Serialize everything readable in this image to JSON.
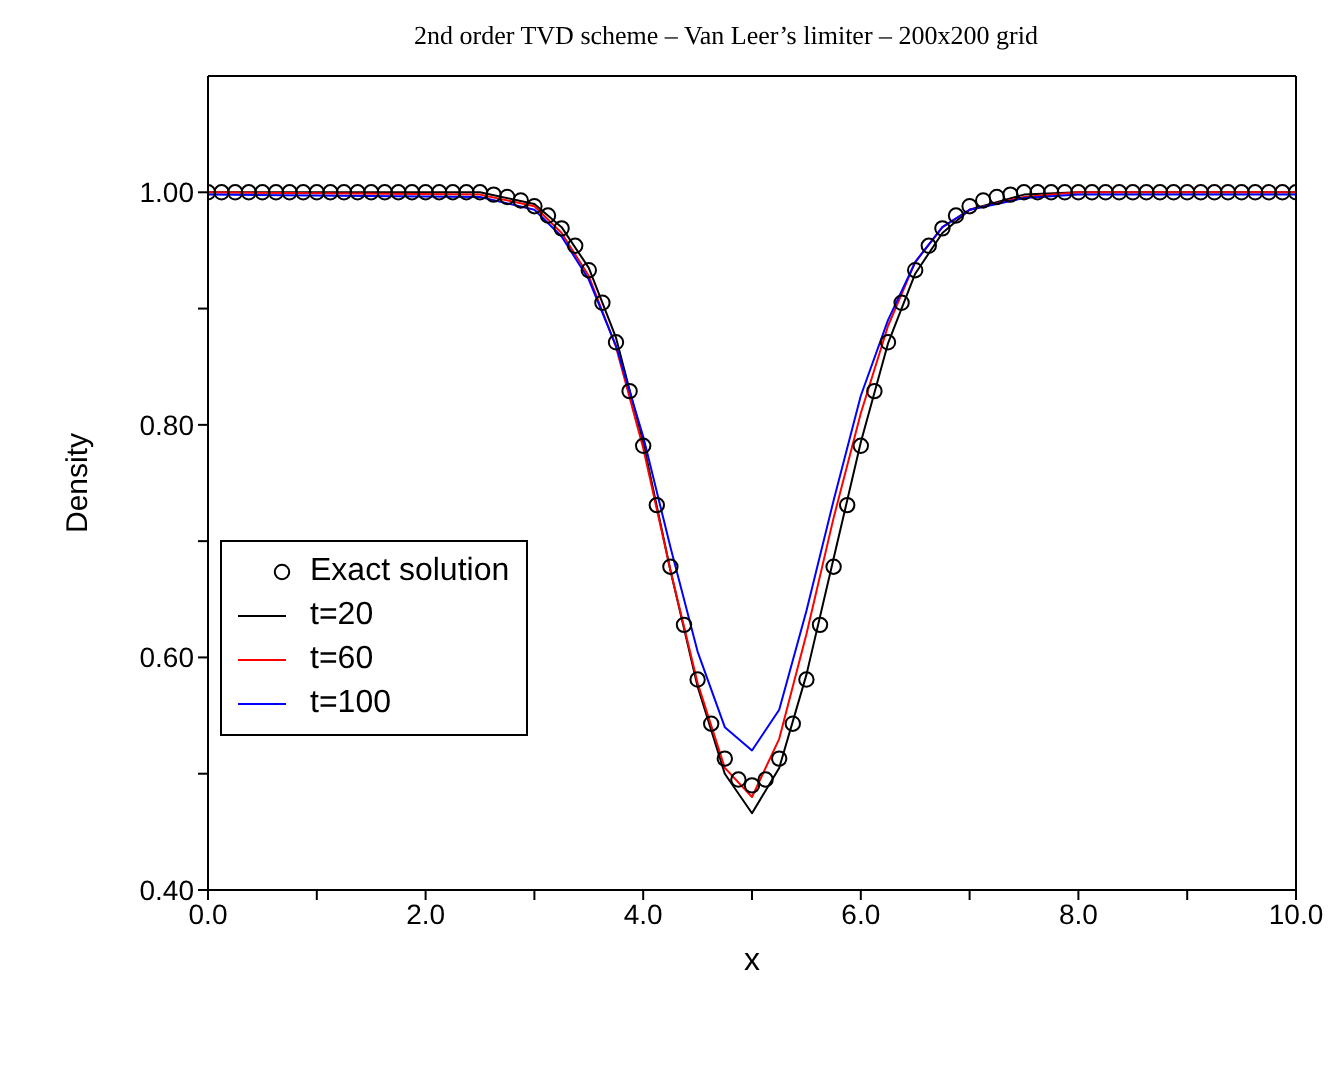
{
  "chart_data": {
    "type": "line",
    "title": "2nd order TVD scheme – Van Leer’s limiter – 200x200 grid",
    "xlabel": "x",
    "ylabel": "Density",
    "xlim": [
      0,
      10
    ],
    "ylim": [
      0.4,
      1.1
    ],
    "xticks": [
      {
        "value": 0,
        "label": "0.0"
      },
      {
        "value": 1,
        "label": null
      },
      {
        "value": 2,
        "label": "2.0"
      },
      {
        "value": 3,
        "label": null
      },
      {
        "value": 4,
        "label": "4.0"
      },
      {
        "value": 5,
        "label": null
      },
      {
        "value": 6,
        "label": "6.0"
      },
      {
        "value": 7,
        "label": null
      },
      {
        "value": 8,
        "label": "8.0"
      },
      {
        "value": 9,
        "label": null
      },
      {
        "value": 10,
        "label": "10.0"
      }
    ],
    "yticks": [
      {
        "value": 0.4,
        "label": "0.40"
      },
      {
        "value": 0.5,
        "label": null
      },
      {
        "value": 0.6,
        "label": "0.60"
      },
      {
        "value": 0.7,
        "label": null
      },
      {
        "value": 0.8,
        "label": "0.80"
      },
      {
        "value": 0.9,
        "label": null
      },
      {
        "value": 1.0,
        "label": "1.00"
      }
    ],
    "grid": false,
    "legend": "left",
    "series": [
      {
        "name": "Exact solution",
        "type": "scatter",
        "marker": "circle",
        "color": "#000000",
        "x": [
          0,
          0.125,
          0.25,
          0.375,
          0.5,
          0.625,
          0.75,
          0.875,
          1,
          1.125,
          1.25,
          1.375,
          1.5,
          1.625,
          1.75,
          1.875,
          2,
          2.125,
          2.25,
          2.375,
          2.5,
          2.625,
          2.75,
          2.875,
          3,
          3.125,
          3.25,
          3.375,
          3.5,
          3.625,
          3.75,
          3.875,
          4,
          4.125,
          4.25,
          4.375,
          4.5,
          4.625,
          4.75,
          4.875,
          5,
          5.125,
          5.25,
          5.375,
          5.5,
          5.625,
          5.75,
          5.875,
          6,
          6.125,
          6.25,
          6.375,
          6.5,
          6.625,
          6.75,
          6.875,
          7,
          7.125,
          7.25,
          7.375,
          7.5,
          7.625,
          7.75,
          7.875,
          8,
          8.125,
          8.25,
          8.375,
          8.5,
          8.625,
          8.75,
          8.875,
          9,
          9.125,
          9.25,
          9.375,
          9.5,
          9.625,
          9.75,
          9.875,
          10
        ],
        "values": [
          1,
          1,
          1,
          1,
          1,
          1,
          1,
          1,
          1,
          1,
          1,
          1,
          1,
          1,
          1,
          1,
          1,
          1,
          1,
          1,
          1,
          0.998,
          0.996,
          0.993,
          0.988,
          0.98,
          0.969,
          0.954,
          0.933,
          0.905,
          0.871,
          0.829,
          0.782,
          0.731,
          0.678,
          0.628,
          0.581,
          0.543,
          0.513,
          0.495,
          0.49,
          0.495,
          0.513,
          0.543,
          0.581,
          0.628,
          0.678,
          0.731,
          0.782,
          0.829,
          0.871,
          0.905,
          0.933,
          0.954,
          0.969,
          0.98,
          0.988,
          0.993,
          0.996,
          0.998,
          1,
          1,
          1,
          1,
          1,
          1,
          1,
          1,
          1,
          1,
          1,
          1,
          1,
          1,
          1,
          1,
          1,
          1,
          1,
          1,
          1
        ]
      },
      {
        "name": "t=20",
        "type": "line",
        "marker": "none",
        "color": "#000000",
        "x": [
          0,
          2.5,
          3,
          3.25,
          3.5,
          3.75,
          4,
          4.25,
          4.5,
          4.75,
          5,
          5.25,
          5.5,
          5.75,
          6,
          6.25,
          6.5,
          6.75,
          7,
          7.5,
          8,
          10
        ],
        "values": [
          1,
          1,
          0.99,
          0.97,
          0.935,
          0.875,
          0.785,
          0.675,
          0.575,
          0.5,
          0.466,
          0.505,
          0.585,
          0.685,
          0.785,
          0.87,
          0.93,
          0.965,
          0.985,
          0.998,
          1,
          1
        ]
      },
      {
        "name": "t=60",
        "type": "line",
        "marker": "none",
        "color": "#ff0000",
        "x": [
          0,
          2.5,
          3,
          3.25,
          3.5,
          3.75,
          4,
          4.25,
          4.5,
          4.75,
          5,
          5.25,
          5.5,
          5.75,
          6,
          6.25,
          6.5,
          6.75,
          7,
          7.5,
          8,
          10
        ],
        "values": [
          1,
          0.998,
          0.988,
          0.965,
          0.928,
          0.867,
          0.78,
          0.675,
          0.578,
          0.505,
          0.48,
          0.53,
          0.62,
          0.72,
          0.81,
          0.885,
          0.94,
          0.97,
          0.985,
          0.996,
          1,
          1
        ]
      },
      {
        "name": "t=100",
        "type": "line",
        "marker": "none",
        "color": "#0000ff",
        "x": [
          0,
          2.5,
          3,
          3.25,
          3.5,
          3.75,
          4,
          4.25,
          4.5,
          4.75,
          5,
          5.25,
          5.5,
          5.75,
          6,
          6.25,
          6.5,
          6.75,
          7,
          7.5,
          8,
          10
        ],
        "values": [
          0.998,
          0.996,
          0.985,
          0.962,
          0.925,
          0.868,
          0.79,
          0.695,
          0.605,
          0.54,
          0.52,
          0.555,
          0.64,
          0.735,
          0.825,
          0.89,
          0.94,
          0.97,
          0.985,
          0.995,
          0.998,
          0.998
        ]
      }
    ]
  }
}
